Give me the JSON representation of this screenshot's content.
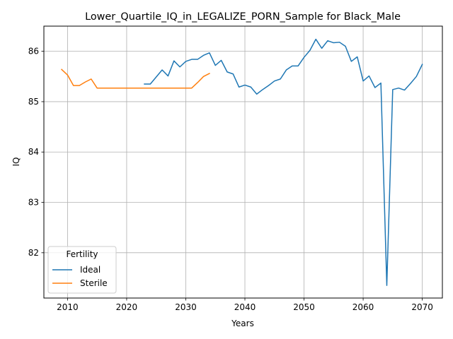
{
  "chart_data": {
    "type": "line",
    "title": "Lower_Quartile_IQ_in_LEGALIZE_PORN_Sample for Black_Male",
    "xlabel": "Years",
    "ylabel": "IQ",
    "xlim": [
      2006,
      2073.4
    ],
    "ylim": [
      81.1,
      86.5
    ],
    "xticks": [
      2010,
      2020,
      2030,
      2040,
      2050,
      2060,
      2070
    ],
    "yticks": [
      82,
      83,
      84,
      85,
      86
    ],
    "grid": true,
    "legend": {
      "title": "Fertility",
      "placement": "lower-left"
    },
    "series": [
      {
        "name": "Ideal",
        "color": "#1f77b4",
        "x": [
          2023,
          2024,
          2025,
          2026,
          2027,
          2028,
          2029,
          2030,
          2031,
          2032,
          2033,
          2034,
          2035,
          2036,
          2037,
          2038,
          2039,
          2040,
          2041,
          2042,
          2043,
          2044,
          2045,
          2046,
          2047,
          2048,
          2049,
          2050,
          2051,
          2052,
          2053,
          2054,
          2055,
          2056,
          2057,
          2058,
          2059,
          2060,
          2061,
          2062,
          2063,
          2064,
          2065,
          2066,
          2067,
          2068,
          2069,
          2070
        ],
        "y": [
          85.35,
          85.35,
          85.49,
          85.63,
          85.51,
          85.81,
          85.69,
          85.8,
          85.84,
          85.84,
          85.92,
          85.97,
          85.72,
          85.82,
          85.59,
          85.55,
          85.29,
          85.33,
          85.29,
          85.15,
          85.24,
          85.32,
          85.41,
          85.45,
          85.63,
          85.71,
          85.71,
          85.88,
          86.02,
          86.24,
          86.06,
          86.21,
          86.17,
          86.18,
          86.1,
          85.8,
          85.89,
          85.41,
          85.51,
          85.28,
          85.37,
          81.35,
          85.24,
          85.27,
          85.23,
          85.36,
          85.5,
          85.74
        ]
      },
      {
        "name": "Sterile",
        "color": "#ff7f0e",
        "x": [
          2009,
          2010,
          2011,
          2012,
          2013,
          2014,
          2015,
          2016,
          2017,
          2018,
          2019,
          2020,
          2021,
          2022,
          2023,
          2024,
          2025,
          2026,
          2027,
          2028,
          2029,
          2030,
          2031,
          2032,
          2033,
          2034
        ],
        "y": [
          85.64,
          85.53,
          85.32,
          85.32,
          85.39,
          85.45,
          85.27,
          85.27,
          85.27,
          85.27,
          85.27,
          85.27,
          85.27,
          85.27,
          85.27,
          85.27,
          85.27,
          85.27,
          85.27,
          85.27,
          85.27,
          85.27,
          85.27,
          85.38,
          85.5,
          85.56
        ]
      }
    ]
  }
}
